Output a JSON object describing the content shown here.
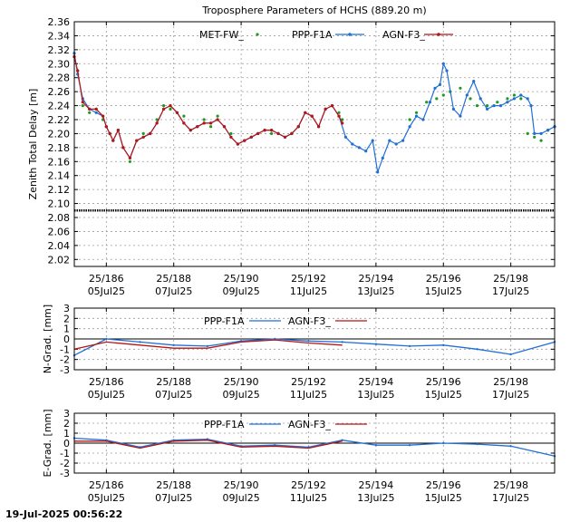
{
  "timestamp": "19-Jul-2025 00:56:22",
  "colors": {
    "met": "#1f9a1f",
    "ppp": "#1f6fd6",
    "agn": "#b81414",
    "ref": "#000000",
    "grid": "#9a9a9a"
  },
  "chart_data": [
    {
      "type": "line",
      "title": "Troposphere Parameters of HCHS (889.20 m)",
      "ylabel": "Zenith Total Delay [m]",
      "xlim": [
        185.05,
        199.3
      ],
      "ylim": [
        2.01,
        2.36
      ],
      "yticks": [
        "2.02",
        "2.04",
        "2.06",
        "2.08",
        "2.10",
        "2.12",
        "2.14",
        "2.16",
        "2.18",
        "2.20",
        "2.22",
        "2.24",
        "2.26",
        "2.28",
        "2.30",
        "2.32",
        "2.34",
        "2.36"
      ],
      "xticks": [
        {
          "doy": 186,
          "doy_label": "25/186",
          "date_label": "05Jul25"
        },
        {
          "doy": 188,
          "doy_label": "25/188",
          "date_label": "07Jul25"
        },
        {
          "doy": 190,
          "doy_label": "25/190",
          "date_label": "09Jul25"
        },
        {
          "doy": 192,
          "doy_label": "25/192",
          "date_label": "11Jul25"
        },
        {
          "doy": 194,
          "doy_label": "25/194",
          "date_label": "13Jul25"
        },
        {
          "doy": 196,
          "doy_label": "25/196",
          "date_label": "15Jul25"
        },
        {
          "doy": 198,
          "doy_label": "25/198",
          "date_label": "17Jul25"
        }
      ],
      "grid": true,
      "legend_position": "top",
      "series": [
        {
          "name": "MET-FW_",
          "color_key": "met",
          "x": [
            185.05,
            185.15,
            185.3,
            185.5,
            185.7,
            185.9,
            186.0,
            186.1,
            186.2,
            186.35,
            186.5,
            186.7,
            186.9,
            187.1,
            187.3,
            187.5,
            187.7,
            187.9,
            188.1,
            188.3,
            188.5,
            188.7,
            188.9,
            189.1,
            189.3,
            189.5,
            189.7,
            189.9,
            190.1,
            190.3,
            190.5,
            190.7,
            190.9,
            191.1,
            191.3,
            191.5,
            191.7,
            191.9,
            192.1,
            192.3,
            192.5,
            192.7,
            192.9,
            193.0,
            195.0,
            195.2,
            195.5,
            195.8,
            196.0,
            196.2,
            196.5,
            196.8,
            197.0,
            197.3,
            197.6,
            197.9,
            198.1,
            198.3,
            198.5,
            198.7,
            198.9,
            199.1,
            199.3
          ],
          "y": [
            2.31,
            2.29,
            2.24,
            2.23,
            2.235,
            2.22,
            2.21,
            2.2,
            2.19,
            2.205,
            2.18,
            2.16,
            2.19,
            2.2,
            2.2,
            2.22,
            2.24,
            2.235,
            2.23,
            2.225,
            2.205,
            2.21,
            2.22,
            2.21,
            2.225,
            2.21,
            2.2,
            2.185,
            2.19,
            2.195,
            2.2,
            2.205,
            2.2,
            2.2,
            2.195,
            2.2,
            2.21,
            2.23,
            2.225,
            2.21,
            2.235,
            2.24,
            2.23,
            2.22,
            2.22,
            2.23,
            2.245,
            2.25,
            2.255,
            2.26,
            2.265,
            2.25,
            2.24,
            2.24,
            2.245,
            2.25,
            2.255,
            2.25,
            2.2,
            2.195,
            2.19,
            2.205,
            2.21
          ]
        },
        {
          "name": "PPP-F1A",
          "color_key": "ppp",
          "x": [
            185.05,
            185.15,
            185.3,
            185.5,
            185.7,
            185.9,
            186.0,
            186.1,
            186.2,
            186.35,
            186.5,
            186.7,
            186.9,
            187.1,
            187.3,
            187.5,
            187.7,
            187.9,
            188.1,
            188.3,
            188.5,
            188.7,
            188.9,
            189.1,
            189.3,
            189.5,
            189.7,
            189.9,
            190.1,
            190.3,
            190.5,
            190.7,
            190.9,
            191.1,
            191.3,
            191.5,
            191.7,
            191.9,
            192.1,
            192.3,
            192.5,
            192.7,
            192.9,
            193.1,
            193.3,
            193.5,
            193.7,
            193.9,
            194.05,
            194.2,
            194.4,
            194.6,
            194.8,
            195.0,
            195.2,
            195.4,
            195.6,
            195.75,
            195.9,
            196.0,
            196.1,
            196.3,
            196.5,
            196.7,
            196.9,
            197.1,
            197.3,
            197.5,
            197.7,
            197.9,
            198.1,
            198.3,
            198.5,
            198.6,
            198.7,
            198.9,
            199.1,
            199.3
          ],
          "y": [
            2.315,
            2.285,
            2.25,
            2.235,
            2.23,
            2.225,
            2.21,
            2.2,
            2.19,
            2.205,
            2.18,
            2.165,
            2.19,
            2.195,
            2.2,
            2.215,
            2.235,
            2.24,
            2.23,
            2.215,
            2.205,
            2.21,
            2.215,
            2.215,
            2.22,
            2.21,
            2.195,
            2.185,
            2.19,
            2.195,
            2.2,
            2.205,
            2.205,
            2.2,
            2.195,
            2.2,
            2.21,
            2.23,
            2.225,
            2.21,
            2.235,
            2.24,
            2.225,
            2.195,
            2.185,
            2.18,
            2.175,
            2.19,
            2.145,
            2.165,
            2.19,
            2.185,
            2.19,
            2.21,
            2.225,
            2.22,
            2.245,
            2.265,
            2.27,
            2.3,
            2.29,
            2.235,
            2.225,
            2.255,
            2.275,
            2.25,
            2.235,
            2.24,
            2.24,
            2.245,
            2.25,
            2.255,
            2.25,
            2.24,
            2.2,
            2.2,
            2.205,
            2.21
          ]
        },
        {
          "name": "AGN-F3_",
          "color_key": "agn",
          "x": [
            185.05,
            185.15,
            185.3,
            185.5,
            185.7,
            185.9,
            186.0,
            186.1,
            186.2,
            186.35,
            186.5,
            186.7,
            186.9,
            187.1,
            187.3,
            187.5,
            187.7,
            187.9,
            188.1,
            188.3,
            188.5,
            188.7,
            188.9,
            189.1,
            189.3,
            189.5,
            189.7,
            189.9,
            190.1,
            190.3,
            190.5,
            190.7,
            190.9,
            191.1,
            191.3,
            191.5,
            191.7,
            191.9,
            192.1,
            192.3,
            192.5,
            192.7,
            192.9,
            193.0
          ],
          "y": [
            2.31,
            2.29,
            2.245,
            2.235,
            2.235,
            2.225,
            2.21,
            2.2,
            2.19,
            2.205,
            2.18,
            2.165,
            2.19,
            2.195,
            2.2,
            2.215,
            2.235,
            2.24,
            2.23,
            2.215,
            2.205,
            2.21,
            2.215,
            2.215,
            2.22,
            2.21,
            2.195,
            2.185,
            2.19,
            2.195,
            2.2,
            2.205,
            2.205,
            2.2,
            2.195,
            2.2,
            2.21,
            2.23,
            2.225,
            2.21,
            2.235,
            2.24,
            2.225,
            2.215
          ]
        }
      ],
      "reference_line": {
        "y": 2.09,
        "color_key": "ref"
      }
    },
    {
      "type": "line",
      "ylabel": "N-Grad. [mm]",
      "xlim": [
        185.05,
        199.3
      ],
      "ylim": [
        -3,
        3
      ],
      "yticks": [
        "-3",
        "-2",
        "-1",
        "0",
        "1",
        "2",
        "3"
      ],
      "xticks": [
        {
          "doy": 186,
          "doy_label": "25/186",
          "date_label": "05Jul25"
        },
        {
          "doy": 188,
          "doy_label": "25/188",
          "date_label": "07Jul25"
        },
        {
          "doy": 190,
          "doy_label": "25/190",
          "date_label": "09Jul25"
        },
        {
          "doy": 192,
          "doy_label": "25/192",
          "date_label": "11Jul25"
        },
        {
          "doy": 194,
          "doy_label": "25/194",
          "date_label": "13Jul25"
        },
        {
          "doy": 196,
          "doy_label": "25/196",
          "date_label": "15Jul25"
        },
        {
          "doy": 198,
          "doy_label": "25/198",
          "date_label": "17Jul25"
        }
      ],
      "grid": true,
      "legend_position": "top",
      "series": [
        {
          "name": "PPP-F1A",
          "color_key": "ppp",
          "x": [
            185.05,
            186.0,
            187.0,
            188.0,
            189.0,
            190.0,
            191.0,
            192.0,
            193.0,
            194.0,
            195.0,
            196.0,
            197.0,
            198.0,
            199.3
          ],
          "y": [
            -1.6,
            0.0,
            -0.3,
            -0.6,
            -0.7,
            -0.2,
            0.0,
            -0.2,
            -0.3,
            -0.5,
            -0.7,
            -0.6,
            -1.0,
            -1.5,
            -0.3
          ]
        },
        {
          "name": "AGN-F3_",
          "color_key": "agn",
          "x": [
            185.05,
            186.0,
            187.0,
            188.0,
            189.0,
            190.0,
            191.0,
            192.0,
            193.0
          ],
          "y": [
            -1.0,
            -0.3,
            -0.6,
            -0.9,
            -0.9,
            -0.3,
            -0.1,
            -0.4,
            -0.6
          ]
        }
      ]
    },
    {
      "type": "line",
      "ylabel": "E-Grad. [mm]",
      "xlim": [
        185.05,
        199.3
      ],
      "ylim": [
        -3,
        3
      ],
      "yticks": [
        "-3",
        "-2",
        "-1",
        "0",
        "1",
        "2",
        "3"
      ],
      "xticks": [
        {
          "doy": 186,
          "doy_label": "25/186",
          "date_label": "05Jul25"
        },
        {
          "doy": 188,
          "doy_label": "25/188",
          "date_label": "07Jul25"
        },
        {
          "doy": 190,
          "doy_label": "25/190",
          "date_label": "09Jul25"
        },
        {
          "doy": 192,
          "doy_label": "25/192",
          "date_label": "11Jul25"
        },
        {
          "doy": 194,
          "doy_label": "25/194",
          "date_label": "13Jul25"
        },
        {
          "doy": 196,
          "doy_label": "25/196",
          "date_label": "15Jul25"
        },
        {
          "doy": 198,
          "doy_label": "25/198",
          "date_label": "17Jul25"
        }
      ],
      "grid": true,
      "legend_position": "top",
      "series": [
        {
          "name": "PPP-F1A",
          "color_key": "ppp",
          "x": [
            185.05,
            186.0,
            187.0,
            188.0,
            189.0,
            190.0,
            191.0,
            192.0,
            193.0,
            194.0,
            195.0,
            196.0,
            197.0,
            198.0,
            199.3
          ],
          "y": [
            0.5,
            0.3,
            -0.4,
            0.3,
            0.4,
            -0.3,
            -0.2,
            -0.4,
            0.3,
            -0.2,
            -0.2,
            0.0,
            -0.1,
            -0.3,
            -1.3
          ]
        },
        {
          "name": "AGN-F3_",
          "color_key": "agn",
          "x": [
            185.05,
            186.0,
            187.0,
            188.0,
            189.0,
            190.0,
            191.0,
            192.0,
            193.0
          ],
          "y": [
            0.2,
            0.2,
            -0.5,
            0.2,
            0.3,
            -0.4,
            -0.3,
            -0.5,
            0.2
          ]
        }
      ]
    }
  ]
}
